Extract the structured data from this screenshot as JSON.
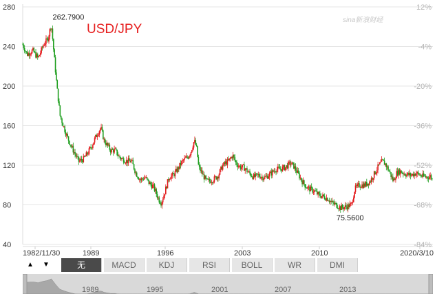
{
  "chart_data": {
    "type": "candlestick",
    "title": "USD/JPY",
    "y_left": {
      "ticks": [
        280,
        240,
        200,
        160,
        120,
        80,
        40
      ],
      "range": [
        40,
        280
      ]
    },
    "y_right": {
      "ticks": [
        "12%",
        "-4%",
        "-20%",
        "-36%",
        "-52%",
        "-68%",
        "-84%"
      ]
    },
    "x_labels": [
      "1982/11/30",
      "1989",
      "1996",
      "2003",
      "2010",
      "2020/3/10"
    ],
    "series": [
      {
        "x": [
          1982.9,
          1983.3,
          1983.8,
          1984.3,
          1984.8,
          1985.2,
          1985.5,
          1985.7,
          1986.0,
          1986.3,
          1986.6,
          1986.9,
          1987.2,
          1987.5,
          1987.8,
          1988.0,
          1988.4,
          1988.8,
          1989.2,
          1989.6,
          1990.0,
          1990.3,
          1990.6,
          1990.9,
          1991.3,
          1991.7,
          1992.0,
          1992.4,
          1992.8,
          1993.2,
          1993.6,
          1994.0,
          1994.4,
          1994.8,
          1995.1,
          1995.3,
          1995.5,
          1995.8,
          1996.2,
          1996.6,
          1997.0,
          1997.3,
          1997.6,
          1997.9,
          1998.2,
          1998.5,
          1998.7,
          1998.9,
          1999.2,
          1999.6,
          1999.9,
          2000.3,
          2000.7,
          2001.0,
          2001.3,
          2001.6,
          2002.0,
          2002.3,
          2002.7,
          2003.0,
          2003.5,
          2003.9,
          2004.3,
          2004.7,
          2005.0,
          2005.5,
          2005.9,
          2006.3,
          2006.8,
          2007.2,
          2007.5,
          2007.9,
          2008.3,
          2008.7,
          2009.0,
          2009.4,
          2009.8,
          2010.3,
          2010.7,
          2011.0,
          2011.4,
          2011.8,
          2012.3,
          2012.8,
          2013.1,
          2013.5,
          2014.0,
          2014.5,
          2014.9,
          2015.3,
          2015.6,
          2015.9,
          2016.3,
          2016.6,
          2016.9,
          2017.2,
          2017.7,
          2018.2,
          2018.7,
          2019.2,
          2019.7,
          2020.0,
          2020.2
        ],
        "y": [
          242,
          232,
          236,
          228,
          242,
          248,
          262.79,
          238,
          200,
          170,
          160,
          150,
          142,
          135,
          128,
          124,
          126,
          132,
          140,
          150,
          158,
          145,
          140,
          135,
          135,
          128,
          126,
          124,
          124,
          112,
          105,
          108,
          102,
          98,
          90,
          85,
          82,
          92,
          108,
          110,
          116,
          122,
          126,
          128,
          134,
          145,
          138,
          118,
          112,
          104,
          104,
          106,
          110,
          118,
          122,
          124,
          130,
          122,
          118,
          118,
          112,
          108,
          110,
          108,
          108,
          112,
          116,
          116,
          118,
          122,
          120,
          112,
          104,
          98,
          96,
          94,
          90,
          88,
          86,
          82,
          80,
          77,
          78,
          80,
          96,
          100,
          100,
          104,
          112,
          120,
          124,
          121,
          112,
          104,
          112,
          114,
          111,
          110,
          112,
          109,
          108,
          109,
          104
        ]
      }
    ],
    "annotations": [
      {
        "text": "262.7900",
        "x": 1985.5,
        "y": 262.79
      },
      {
        "text": "75.5600",
        "x": 2011.8,
        "y": 75.56
      }
    ],
    "navigator": {
      "labels": [
        "1989",
        "1995",
        "2001",
        "2007",
        "2013"
      ]
    }
  },
  "watermark": "sina新浪财经",
  "toolbar": {
    "up_arrow": "▲",
    "down_arrow": "▼",
    "tabs": [
      "无",
      "MACD",
      "KDJ",
      "RSI",
      "BOLL",
      "WR",
      "DMI"
    ],
    "active_tab": "无"
  },
  "colors": {
    "up": "#e31a1c",
    "down": "#1f9e1f",
    "grid": "#e5e5e5",
    "accent": "#e61e1e"
  }
}
